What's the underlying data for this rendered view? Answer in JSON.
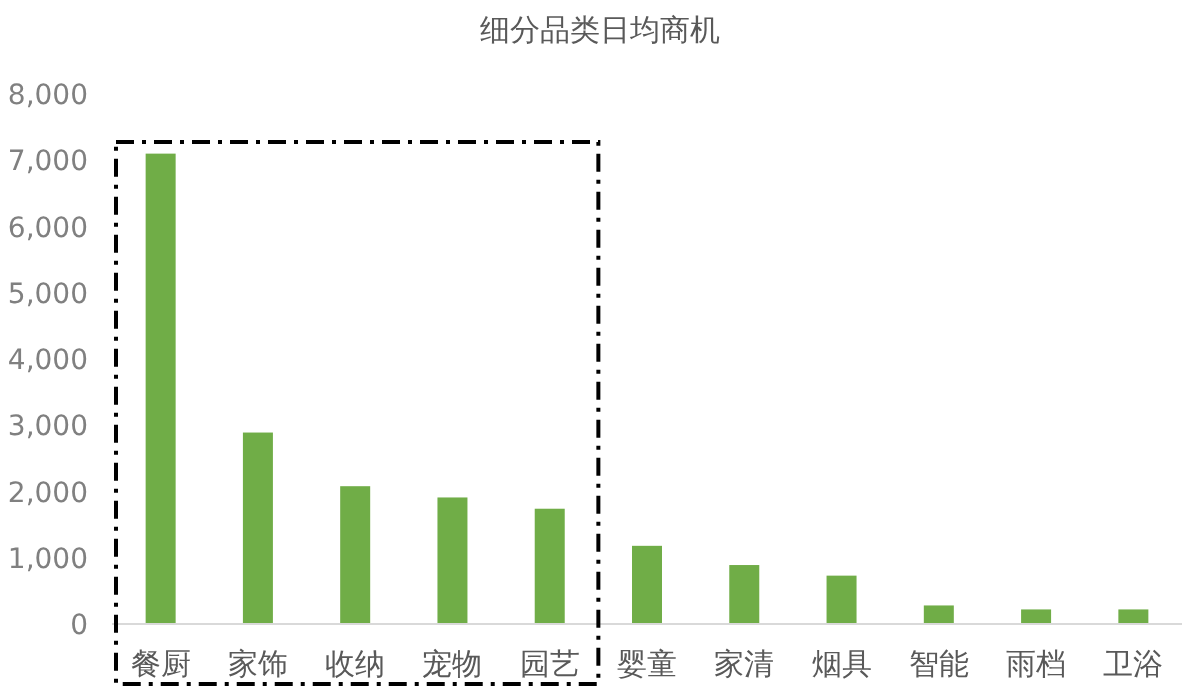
{
  "chart_data": {
    "type": "bar",
    "title": "细分品类日均商机",
    "categories": [
      "餐厨",
      "家饰",
      "收纳",
      "宠物",
      "园艺",
      "婴童",
      "家清",
      "烟具",
      "智能",
      "雨档",
      "卫浴"
    ],
    "values": [
      7100,
      2890,
      2080,
      1910,
      1740,
      1180,
      890,
      730,
      280,
      220,
      220
    ],
    "color": "#70ad47",
    "ylim": [
      0,
      8000
    ],
    "yticks": [
      {
        "value": 0,
        "label": "0"
      },
      {
        "value": 1000,
        "label": "1,000"
      },
      {
        "value": 2000,
        "label": "2,000"
      },
      {
        "value": 3000,
        "label": "3,000"
      },
      {
        "value": 4000,
        "label": "4,000"
      },
      {
        "value": 5000,
        "label": "5,000"
      },
      {
        "value": 6000,
        "label": "6,000"
      },
      {
        "value": 7000,
        "label": "7,000"
      },
      {
        "value": 8000,
        "label": "8,000"
      }
    ],
    "grid": false
  }
}
